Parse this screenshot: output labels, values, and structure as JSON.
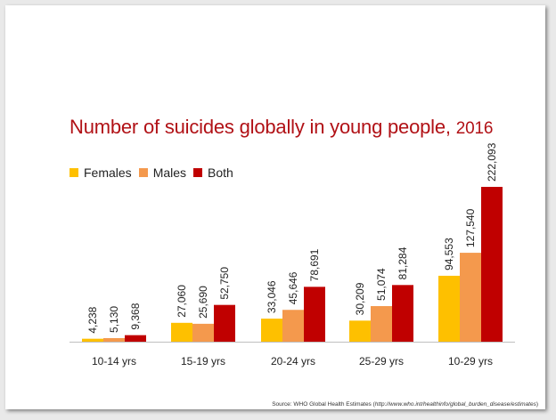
{
  "title_main": "Number of suicides globally in young people",
  "title_sep": ", ",
  "title_year": "2016",
  "source_prefix": "Source: WHO Global Health Estimates (",
  "source_url": "http://www.who.int/healthinfo/global_burden_disease/estimates",
  "source_suffix": ")",
  "colors": {
    "females": "#fec000",
    "males": "#f4994d",
    "both": "#c00000",
    "title": "#b11116"
  },
  "chart_data": {
    "type": "bar",
    "title": "Number of suicides globally in young people, 2016",
    "categories": [
      "10-14 yrs",
      "15-19 yrs",
      "20-24 yrs",
      "25-29 yrs",
      "10-29 yrs"
    ],
    "series": [
      {
        "name": "Females",
        "values": [
          4238,
          27060,
          33046,
          30209,
          94553
        ],
        "labels": [
          "4,238",
          "27,060",
          "33,046",
          "30,209",
          "94,553"
        ]
      },
      {
        "name": "Males",
        "values": [
          5130,
          25690,
          45646,
          51074,
          127540
        ],
        "labels": [
          "5,130",
          "25,690",
          "45,646",
          "51,074",
          "127,540"
        ]
      },
      {
        "name": "Both",
        "values": [
          9368,
          52750,
          78691,
          81284,
          222093
        ],
        "labels": [
          "9,368",
          "52,750",
          "78,691",
          "81,284",
          "222,093"
        ]
      }
    ],
    "legend": "top-left",
    "grid": false,
    "ylim": [
      0,
      222093
    ]
  }
}
